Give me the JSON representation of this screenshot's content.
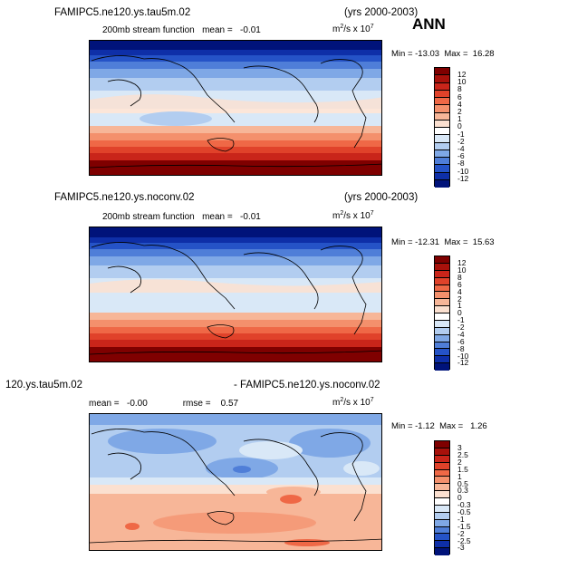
{
  "season": "ANN",
  "panels": [
    {
      "case_name": "FAMIPC5.ne120.ys.tau5m.02",
      "years": "(yrs 2000-2003)",
      "field_label": "200mb stream function",
      "mean_label": "mean =",
      "mean_value": "-0.01",
      "units_base": "m",
      "units_sq": "2",
      "units_mid": "/s x 10",
      "units_exp": "7",
      "min_label": "Min =",
      "min_value": "-13.03",
      "max_label": "Max =",
      "max_value": "16.28",
      "levels": [
        "12",
        "10",
        "8",
        "6",
        "4",
        "2",
        "1",
        "0",
        "-1",
        "-2",
        "-4",
        "-6",
        "-8",
        "-10",
        "-12"
      ]
    },
    {
      "case_name": "FAMIPC5.ne120.ys.noconv.02",
      "years": "(yrs 2000-2003)",
      "field_label": "200mb stream function",
      "mean_label": "mean =",
      "mean_value": "-0.01",
      "units_base": "m",
      "units_sq": "2",
      "units_mid": "/s x 10",
      "units_exp": "7",
      "min_label": "Min =",
      "min_value": "-12.31",
      "max_label": "Max =",
      "max_value": "15.63",
      "levels": [
        "12",
        "10",
        "8",
        "6",
        "4",
        "2",
        "1",
        "0",
        "-1",
        "-2",
        "-4",
        "-6",
        "-8",
        "-10",
        "-12"
      ]
    },
    {
      "case_left": "120.ys.tau5m.02",
      "case_right": "- FAMIPC5.ne120.ys.noconv.02",
      "mean_label": "mean =",
      "mean_value": "-0.00",
      "rmse_label": "rmse =",
      "rmse_value": "0.57",
      "units_base": "m",
      "units_sq": "2",
      "units_mid": "/s x 10",
      "units_exp": "7",
      "min_label": "Min =",
      "min_value": "-1.12",
      "max_label": "Max =",
      "max_value": "1.26",
      "levels": [
        "3",
        "2.5",
        "2",
        "1.5",
        "1",
        "0.5",
        "0.3",
        "0",
        "-0.3",
        "-0.5",
        "-1",
        "-1.5",
        "-2",
        "-2.5",
        "-3"
      ]
    }
  ],
  "colors": {
    "scale": [
      "#7f0000",
      "#a8110b",
      "#c9251a",
      "#e0422a",
      "#ef6846",
      "#f4906c",
      "#f7b698",
      "#fbe0d0",
      "#ffffff",
      "#d9e8f7",
      "#b2cdf0",
      "#7fa8e6",
      "#4f7ed8",
      "#2553c7",
      "#0e2fa8",
      "#00137a"
    ]
  }
}
